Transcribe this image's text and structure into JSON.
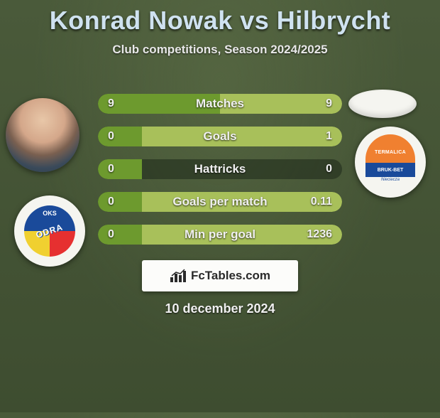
{
  "title": "Konrad Nowak vs Hilbrycht",
  "subtitle": "Club competitions, Season 2024/2025",
  "footer_brand": "FcTables.com",
  "footer_date": "10 december 2024",
  "colors": {
    "left_fill": "#6d9a2e",
    "right_fill": "#a8c05a",
    "bar_track": "rgba(30,40,25,0.55)",
    "text": "#f0f0f0",
    "title": "#cfe2f0",
    "badge_bg": "#fcfcfa",
    "badge_text": "#2a2a2a"
  },
  "club_left": {
    "name": "ODRA",
    "top_text": "OKS"
  },
  "club_right": {
    "top": "TERMALICA",
    "mid": "BRUK-BET",
    "bot": "Nieciecza"
  },
  "stats": [
    {
      "label": "Matches",
      "left_val": "9",
      "right_val": "9",
      "left_pct": 50,
      "right_pct": 50
    },
    {
      "label": "Goals",
      "left_val": "0",
      "right_val": "1",
      "left_pct": 18,
      "right_pct": 82
    },
    {
      "label": "Hattricks",
      "left_val": "0",
      "right_val": "0",
      "left_pct": 18,
      "right_pct": 0
    },
    {
      "label": "Goals per match",
      "left_val": "0",
      "right_val": "0.11",
      "left_pct": 18,
      "right_pct": 82
    },
    {
      "label": "Min per goal",
      "left_val": "0",
      "right_val": "1236",
      "left_pct": 18,
      "right_pct": 82
    }
  ]
}
